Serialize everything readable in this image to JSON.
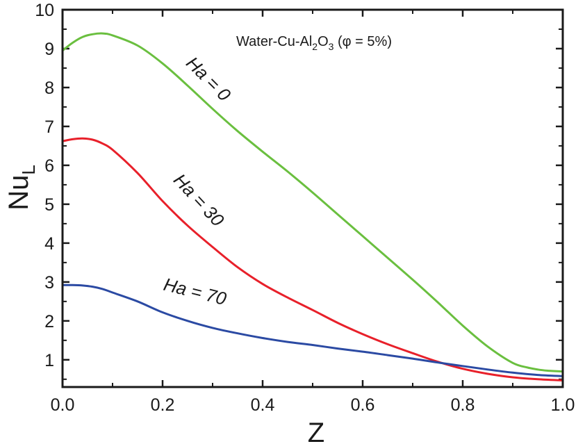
{
  "chart_data": {
    "type": "line",
    "title": "",
    "xlabel": "Z",
    "ylabel": "Nu",
    "ylabel_sub": "L",
    "xlim": [
      0.0,
      1.0
    ],
    "ylim": [
      0.3,
      10
    ],
    "x_ticks": [
      "0.0",
      "0.2",
      "0.4",
      "0.6",
      "0.8",
      "1.0"
    ],
    "x_tick_values": [
      0.0,
      0.2,
      0.4,
      0.6,
      0.8,
      1.0
    ],
    "y_ticks": [
      "1",
      "2",
      "3",
      "4",
      "5",
      "6",
      "7",
      "8",
      "9",
      "10"
    ],
    "y_tick_values": [
      1,
      2,
      3,
      4,
      5,
      6,
      7,
      8,
      9,
      10
    ],
    "annotation": {
      "prefix": "Water-Cu-Al",
      "sub1": "2",
      "mid": "O",
      "sub2": "3",
      "suffix": " (φ = 5%)"
    },
    "series": [
      {
        "name": "Ha = 0",
        "color": "#6abf3f",
        "x": [
          0.0,
          0.02,
          0.04,
          0.06,
          0.08,
          0.1,
          0.15,
          0.2,
          0.25,
          0.3,
          0.35,
          0.4,
          0.45,
          0.5,
          0.55,
          0.6,
          0.65,
          0.7,
          0.75,
          0.8,
          0.85,
          0.9,
          0.93,
          0.95,
          0.97,
          1.0
        ],
        "values": [
          8.95,
          9.15,
          9.3,
          9.37,
          9.39,
          9.34,
          9.08,
          8.62,
          8.05,
          7.45,
          6.88,
          6.35,
          5.84,
          5.3,
          4.74,
          4.18,
          3.62,
          3.06,
          2.48,
          1.88,
          1.34,
          0.92,
          0.8,
          0.75,
          0.72,
          0.7
        ]
      },
      {
        "name": "Ha = 30",
        "color": "#e8202a",
        "x": [
          0.0,
          0.02,
          0.04,
          0.06,
          0.08,
          0.1,
          0.15,
          0.2,
          0.25,
          0.3,
          0.35,
          0.4,
          0.45,
          0.5,
          0.55,
          0.6,
          0.65,
          0.7,
          0.75,
          0.8,
          0.85,
          0.9,
          0.95,
          1.0
        ],
        "values": [
          6.62,
          6.67,
          6.69,
          6.66,
          6.56,
          6.4,
          5.8,
          5.08,
          4.45,
          3.9,
          3.38,
          2.95,
          2.6,
          2.28,
          1.95,
          1.66,
          1.4,
          1.17,
          0.95,
          0.77,
          0.64,
          0.55,
          0.5,
          0.47
        ]
      },
      {
        "name": "Ha = 70",
        "color": "#2b4aa3",
        "x": [
          0.0,
          0.02,
          0.04,
          0.06,
          0.08,
          0.1,
          0.15,
          0.2,
          0.25,
          0.3,
          0.35,
          0.4,
          0.45,
          0.5,
          0.55,
          0.6,
          0.65,
          0.7,
          0.75,
          0.8,
          0.85,
          0.9,
          0.95,
          1.0
        ],
        "values": [
          2.92,
          2.92,
          2.91,
          2.88,
          2.82,
          2.73,
          2.5,
          2.22,
          2.0,
          1.82,
          1.68,
          1.56,
          1.46,
          1.38,
          1.29,
          1.21,
          1.12,
          1.03,
          0.93,
          0.84,
          0.75,
          0.67,
          0.61,
          0.58
        ]
      }
    ],
    "curve_labels": [
      {
        "text": "Ha = 0",
        "x": 0.245,
        "y": 8.6,
        "angle": 45
      },
      {
        "text": "Ha = 30",
        "x": 0.22,
        "y": 5.6,
        "angle": 47
      },
      {
        "text": "Ha = 70",
        "x": 0.2,
        "y": 2.8,
        "angle": 14
      }
    ]
  }
}
